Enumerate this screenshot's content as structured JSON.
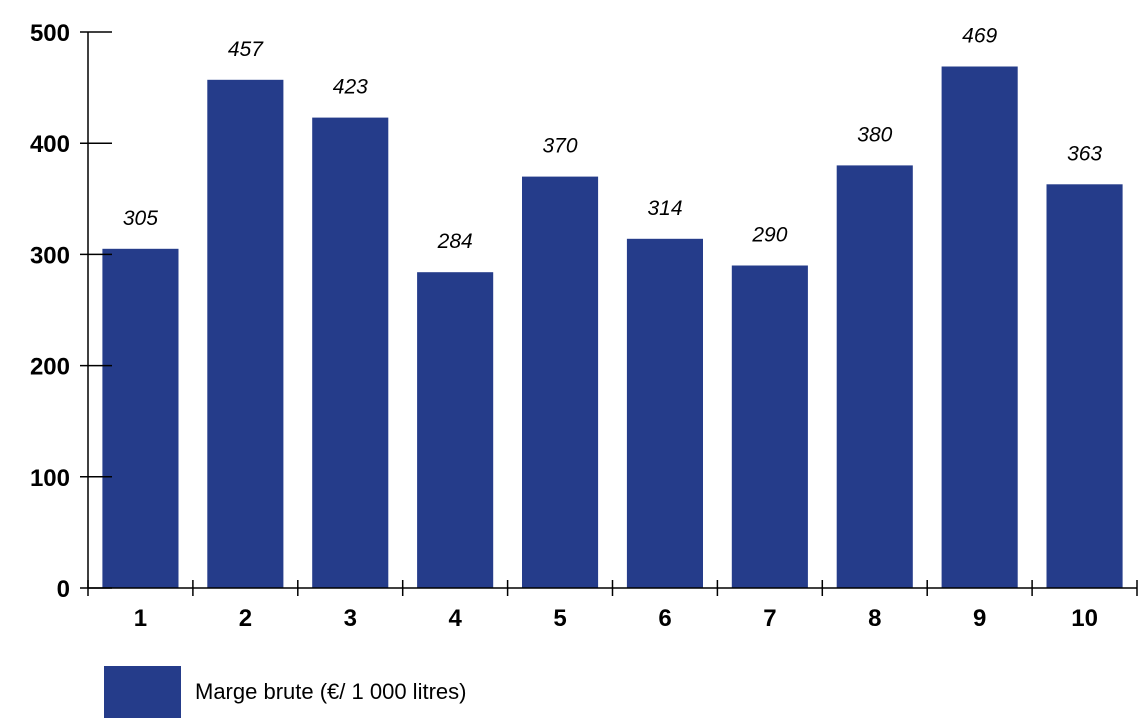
{
  "chart_data": {
    "type": "bar",
    "categories": [
      "1",
      "2",
      "3",
      "4",
      "5",
      "6",
      "7",
      "8",
      "9",
      "10"
    ],
    "series": [
      {
        "name": "Marge brute (€/ 1 000 litres)",
        "values": [
          305,
          457,
          423,
          284,
          370,
          314,
          290,
          380,
          469,
          363
        ],
        "color": "#253c8a"
      }
    ],
    "data_labels": [
      "305",
      "457",
      "423",
      "284",
      "370",
      "314",
      "290",
      "380",
      "469",
      "363"
    ],
    "yticks": [
      "0",
      "100",
      "200",
      "300",
      "400",
      "500"
    ],
    "ylim": [
      0,
      500
    ],
    "grid": false,
    "legend_position": "bottom-left"
  }
}
